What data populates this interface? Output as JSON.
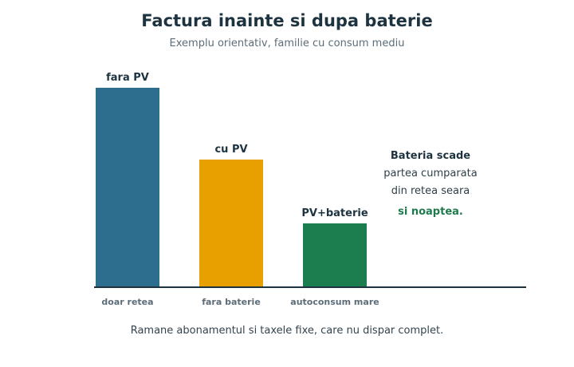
{
  "title": "Factura inainte si dupa baterie",
  "subtitle": "Exemplu orientativ, familie cu consum mediu",
  "footnote": "Ramane abonamentul si taxele fixe, care nu dispar complet.",
  "annotation": {
    "heading": "Bateria scade",
    "line1": "partea cumparata",
    "line2": "din retea seara",
    "emphasis": "si noaptea.",
    "emphasis_color": "#1f7a4e"
  },
  "chart_data": {
    "type": "bar",
    "title": "Factura inainte si dupa baterie",
    "subtitle": "Exemplu orientativ, familie cu consum mediu",
    "categories": [
      "doar retea",
      "fara baterie",
      "autoconsum mare"
    ],
    "bar_labels": [
      "fara PV",
      "cu PV",
      "PV+baterie"
    ],
    "values": [
      100,
      64,
      32
    ],
    "colors": [
      "#2d6e8e",
      "#e89f00",
      "#1c7d4f"
    ],
    "ylim": [
      0,
      100
    ],
    "grid": false,
    "legend": "none"
  }
}
